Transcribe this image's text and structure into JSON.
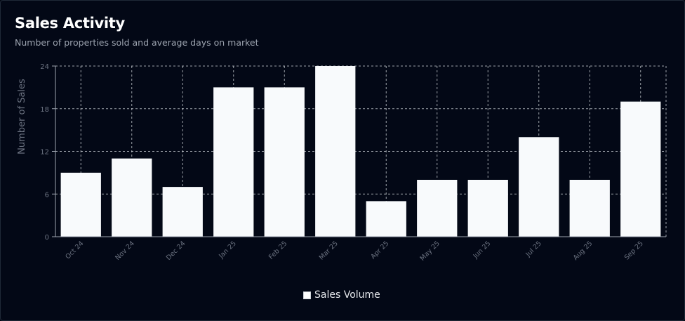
{
  "header": {
    "title": "Sales Activity",
    "subtitle": "Number of properties sold and average days on market"
  },
  "colors": {
    "background": "#030816",
    "bar": "#f8fafc",
    "grid": "#d1d5db",
    "tick_text": "#6b7280"
  },
  "chart_data": {
    "type": "bar",
    "title": "Sales Activity",
    "subtitle": "Number of properties sold and average days on market",
    "ylabel": "Number of Sales",
    "xlabel": "",
    "categories": [
      "Oct 24",
      "Nov 24",
      "Dec 24",
      "Jan 25",
      "Feb 25",
      "Mar 25",
      "Apr 25",
      "May 25",
      "Jun 25",
      "Jul 25",
      "Aug 25",
      "Sep 25"
    ],
    "series": [
      {
        "name": "Sales Volume",
        "values": [
          9,
          11,
          7,
          21,
          21,
          24,
          5,
          8,
          8,
          14,
          8,
          19
        ]
      }
    ],
    "ylim": [
      0,
      24
    ],
    "yticks": [
      0,
      6,
      12,
      18,
      24
    ],
    "grid": true,
    "legend": "bottom-center"
  }
}
